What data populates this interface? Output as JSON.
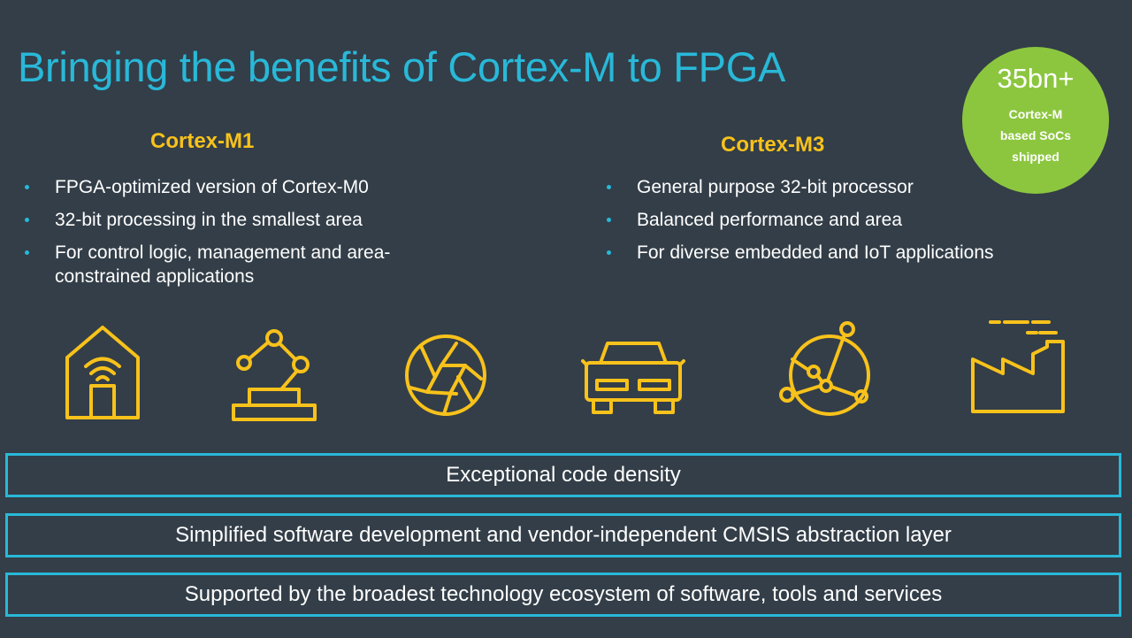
{
  "title": "Bringing the benefits of Cortex-M to FPGA",
  "badge": {
    "value": "35bn+",
    "label": "Cortex-M based SoCs shipped"
  },
  "columns": [
    {
      "heading": "Cortex-M1",
      "bullets": [
        "FPGA-optimized version of Cortex-M0",
        "32-bit processing in the smallest area",
        "For control logic, management and area-constrained applications"
      ]
    },
    {
      "heading": "Cortex-M3",
      "bullets": [
        "General purpose 32-bit processor",
        "Balanced performance and area",
        "For diverse embedded and IoT applications"
      ]
    }
  ],
  "icons": [
    "smart-home-icon",
    "robot-arm-icon",
    "camera-aperture-icon",
    "car-icon",
    "network-globe-icon",
    "factory-icon"
  ],
  "benefits": [
    "Exceptional code density",
    "Simplified software development and vendor-independent CMSIS abstraction layer",
    "Supported by the broadest technology ecosystem of software, tools and services"
  ],
  "colors": {
    "background": "#333e48",
    "title": "#29b8d8",
    "heading": "#f8c21b",
    "icon": "#f8c21b",
    "badge": "#8cc63f",
    "box_border": "#29b8d8"
  }
}
